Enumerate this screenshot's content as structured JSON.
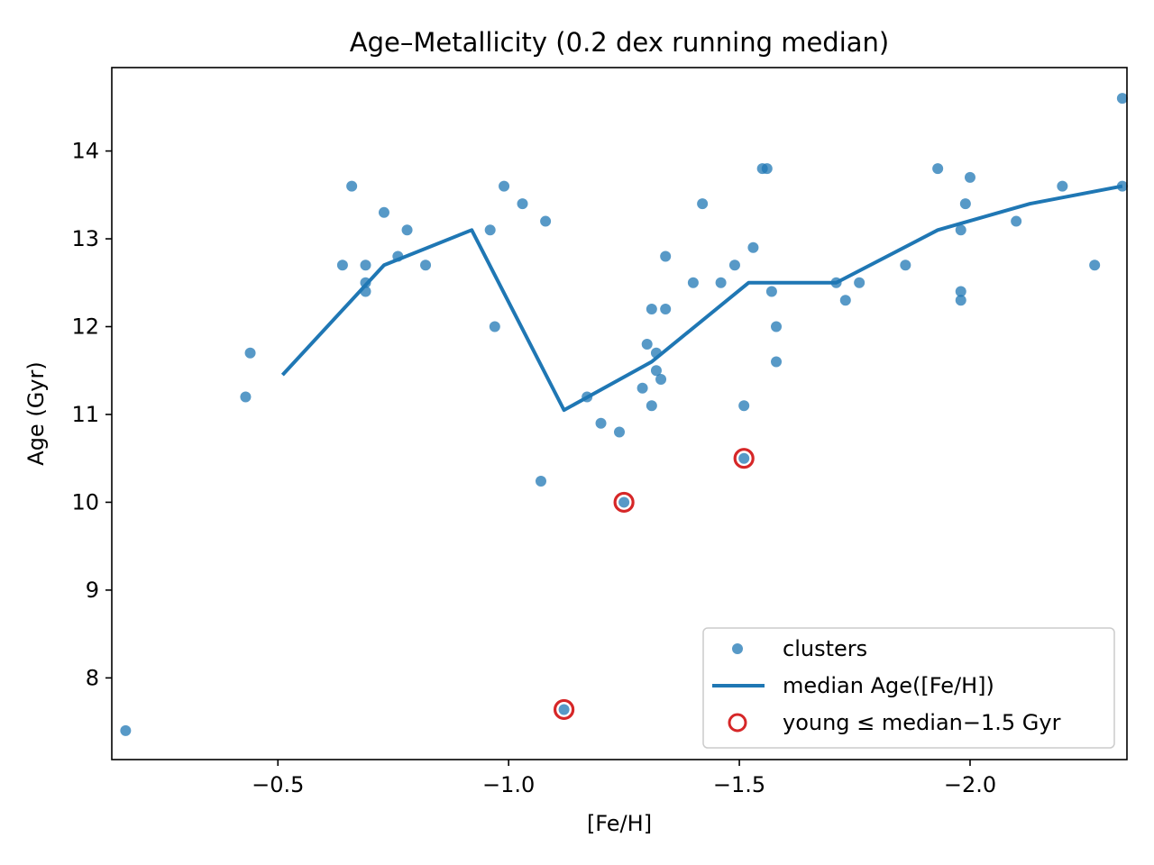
{
  "chart_data": {
    "type": "scatter",
    "title": "Age–Metallicity (0.2 dex running median)",
    "xlabel": "[Fe/H]",
    "ylabel": "Age (Gyr)",
    "xlim": [
      -0.14,
      -2.34
    ],
    "ylim": [
      7.07,
      14.95
    ],
    "x_ticks": [
      -0.5,
      -1.0,
      -1.5,
      -2.0
    ],
    "x_tick_labels": [
      "−0.5",
      "−1.0",
      "−1.5",
      "−2.0"
    ],
    "y_ticks": [
      8,
      9,
      10,
      11,
      12,
      13,
      14
    ],
    "y_tick_labels": [
      "8",
      "9",
      "10",
      "11",
      "12",
      "13",
      "14"
    ],
    "grid": false,
    "legend": {
      "placement": "lower-right",
      "entries": [
        "clusters",
        "median Age([Fe/H])",
        "young ≤ median−1.5 Gyr"
      ]
    },
    "colors": {
      "clusters": "#1f77b4",
      "median": "#1f77b4",
      "young": "#d62728"
    },
    "series": [
      {
        "name": "clusters",
        "kind": "scatter",
        "points": [
          [
            -0.17,
            7.4
          ],
          [
            -0.43,
            11.2
          ],
          [
            -0.44,
            11.7
          ],
          [
            -0.64,
            12.7
          ],
          [
            -0.66,
            13.6
          ],
          [
            -0.69,
            12.5
          ],
          [
            -0.69,
            12.4
          ],
          [
            -0.69,
            12.7
          ],
          [
            -0.73,
            13.3
          ],
          [
            -0.76,
            12.8
          ],
          [
            -0.78,
            13.1
          ],
          [
            -0.82,
            12.7
          ],
          [
            -0.96,
            13.1
          ],
          [
            -0.97,
            12.0
          ],
          [
            -0.99,
            13.6
          ],
          [
            -1.03,
            13.4
          ],
          [
            -1.07,
            10.24
          ],
          [
            -1.08,
            13.2
          ],
          [
            -1.12,
            7.64
          ],
          [
            -1.17,
            11.2
          ],
          [
            -1.2,
            10.9
          ],
          [
            -1.24,
            10.8
          ],
          [
            -1.25,
            10.0
          ],
          [
            -1.29,
            11.3
          ],
          [
            -1.3,
            11.8
          ],
          [
            -1.31,
            12.2
          ],
          [
            -1.31,
            11.1
          ],
          [
            -1.32,
            11.5
          ],
          [
            -1.32,
            11.7
          ],
          [
            -1.33,
            11.4
          ],
          [
            -1.34,
            12.2
          ],
          [
            -1.34,
            12.8
          ],
          [
            -1.4,
            12.5
          ],
          [
            -1.42,
            13.4
          ],
          [
            -1.46,
            12.5
          ],
          [
            -1.49,
            12.7
          ],
          [
            -1.51,
            11.1
          ],
          [
            -1.51,
            10.5
          ],
          [
            -1.53,
            12.9
          ],
          [
            -1.55,
            13.8
          ],
          [
            -1.56,
            13.8
          ],
          [
            -1.57,
            12.4
          ],
          [
            -1.58,
            12.0
          ],
          [
            -1.58,
            11.6
          ],
          [
            -1.71,
            12.5
          ],
          [
            -1.73,
            12.3
          ],
          [
            -1.76,
            12.5
          ],
          [
            -1.86,
            12.7
          ],
          [
            -1.93,
            13.8
          ],
          [
            -1.98,
            13.1
          ],
          [
            -1.98,
            12.4
          ],
          [
            -1.98,
            12.3
          ],
          [
            -1.99,
            13.4
          ],
          [
            -2.0,
            13.7
          ],
          [
            -2.1,
            13.2
          ],
          [
            -2.2,
            13.6
          ],
          [
            -2.27,
            12.7
          ],
          [
            -2.33,
            13.6
          ],
          [
            -2.33,
            14.6
          ]
        ]
      },
      {
        "name": "median Age([Fe/H])",
        "kind": "line",
        "points": [
          [
            -0.51,
            11.45
          ],
          [
            -0.73,
            12.7
          ],
          [
            -0.92,
            13.1
          ],
          [
            -1.12,
            11.05
          ],
          [
            -1.31,
            11.6
          ],
          [
            -1.52,
            12.5
          ],
          [
            -1.71,
            12.5
          ],
          [
            -1.93,
            13.1
          ],
          [
            -2.13,
            13.4
          ],
          [
            -2.33,
            13.6
          ]
        ]
      },
      {
        "name": "young ≤ median−1.5 Gyr",
        "kind": "scatter-outline",
        "points": [
          [
            -1.12,
            7.64
          ],
          [
            -1.25,
            10.0
          ],
          [
            -1.51,
            10.5
          ]
        ]
      }
    ]
  }
}
